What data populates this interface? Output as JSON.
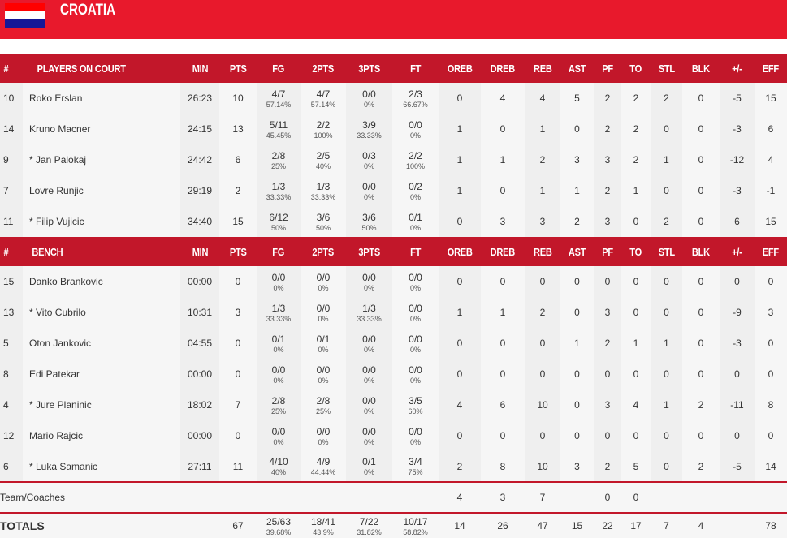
{
  "team": {
    "name": "CROATIA",
    "flag_colors": [
      "#ff0000",
      "#ffffff",
      "#171796"
    ]
  },
  "columns": [
    "#",
    "MIN",
    "PTS",
    "FG",
    "2PTS",
    "3PTS",
    "FT",
    "OREB",
    "DREB",
    "REB",
    "AST",
    "PF",
    "TO",
    "STL",
    "BLK",
    "+/-",
    "EFF"
  ],
  "sections": [
    {
      "title": "PLAYERS ON COURT",
      "players": [
        {
          "no": "10",
          "name": "Roko Erslan",
          "min": "26:23",
          "pts": "10",
          "fg": [
            "4/7",
            "57.14%"
          ],
          "p2": [
            "4/7",
            "57.14%"
          ],
          "p3": [
            "0/0",
            "0%"
          ],
          "ft": [
            "2/3",
            "66.67%"
          ],
          "oreb": "0",
          "dreb": "4",
          "reb": "4",
          "ast": "5",
          "pf": "2",
          "to": "2",
          "stl": "2",
          "blk": "0",
          "pm": "-5",
          "eff": "15"
        },
        {
          "no": "14",
          "name": "Kruno Macner",
          "min": "24:15",
          "pts": "13",
          "fg": [
            "5/11",
            "45.45%"
          ],
          "p2": [
            "2/2",
            "100%"
          ],
          "p3": [
            "3/9",
            "33.33%"
          ],
          "ft": [
            "0/0",
            "0%"
          ],
          "oreb": "1",
          "dreb": "0",
          "reb": "1",
          "ast": "0",
          "pf": "2",
          "to": "2",
          "stl": "0",
          "blk": "0",
          "pm": "-3",
          "eff": "6"
        },
        {
          "no": "9",
          "name": "* Jan Palokaj",
          "min": "24:42",
          "pts": "6",
          "fg": [
            "2/8",
            "25%"
          ],
          "p2": [
            "2/5",
            "40%"
          ],
          "p3": [
            "0/3",
            "0%"
          ],
          "ft": [
            "2/2",
            "100%"
          ],
          "oreb": "1",
          "dreb": "1",
          "reb": "2",
          "ast": "3",
          "pf": "3",
          "to": "2",
          "stl": "1",
          "blk": "0",
          "pm": "-12",
          "eff": "4"
        },
        {
          "no": "7",
          "name": "Lovre Runjic",
          "min": "29:19",
          "pts": "2",
          "fg": [
            "1/3",
            "33.33%"
          ],
          "p2": [
            "1/3",
            "33.33%"
          ],
          "p3": [
            "0/0",
            "0%"
          ],
          "ft": [
            "0/2",
            "0%"
          ],
          "oreb": "1",
          "dreb": "0",
          "reb": "1",
          "ast": "1",
          "pf": "2",
          "to": "1",
          "stl": "0",
          "blk": "0",
          "pm": "-3",
          "eff": "-1"
        },
        {
          "no": "11",
          "name": "* Filip Vujicic",
          "min": "34:40",
          "pts": "15",
          "fg": [
            "6/12",
            "50%"
          ],
          "p2": [
            "3/6",
            "50%"
          ],
          "p3": [
            "3/6",
            "50%"
          ],
          "ft": [
            "0/1",
            "0%"
          ],
          "oreb": "0",
          "dreb": "3",
          "reb": "3",
          "ast": "2",
          "pf": "3",
          "to": "0",
          "stl": "2",
          "blk": "0",
          "pm": "6",
          "eff": "15"
        }
      ]
    },
    {
      "title": "BENCH",
      "players": [
        {
          "no": "15",
          "name": "Danko Brankovic",
          "min": "00:00",
          "pts": "0",
          "fg": [
            "0/0",
            "0%"
          ],
          "p2": [
            "0/0",
            "0%"
          ],
          "p3": [
            "0/0",
            "0%"
          ],
          "ft": [
            "0/0",
            "0%"
          ],
          "oreb": "0",
          "dreb": "0",
          "reb": "0",
          "ast": "0",
          "pf": "0",
          "to": "0",
          "stl": "0",
          "blk": "0",
          "pm": "0",
          "eff": "0"
        },
        {
          "no": "13",
          "name": "* Vito Cubrilo",
          "min": "10:31",
          "pts": "3",
          "fg": [
            "1/3",
            "33.33%"
          ],
          "p2": [
            "0/0",
            "0%"
          ],
          "p3": [
            "1/3",
            "33.33%"
          ],
          "ft": [
            "0/0",
            "0%"
          ],
          "oreb": "1",
          "dreb": "1",
          "reb": "2",
          "ast": "0",
          "pf": "3",
          "to": "0",
          "stl": "0",
          "blk": "0",
          "pm": "-9",
          "eff": "3"
        },
        {
          "no": "5",
          "name": "Oton Jankovic",
          "min": "04:55",
          "pts": "0",
          "fg": [
            "0/1",
            "0%"
          ],
          "p2": [
            "0/1",
            "0%"
          ],
          "p3": [
            "0/0",
            "0%"
          ],
          "ft": [
            "0/0",
            "0%"
          ],
          "oreb": "0",
          "dreb": "0",
          "reb": "0",
          "ast": "1",
          "pf": "2",
          "to": "1",
          "stl": "1",
          "blk": "0",
          "pm": "-3",
          "eff": "0"
        },
        {
          "no": "8",
          "name": "Edi Patekar",
          "min": "00:00",
          "pts": "0",
          "fg": [
            "0/0",
            "0%"
          ],
          "p2": [
            "0/0",
            "0%"
          ],
          "p3": [
            "0/0",
            "0%"
          ],
          "ft": [
            "0/0",
            "0%"
          ],
          "oreb": "0",
          "dreb": "0",
          "reb": "0",
          "ast": "0",
          "pf": "0",
          "to": "0",
          "stl": "0",
          "blk": "0",
          "pm": "0",
          "eff": "0"
        },
        {
          "no": "4",
          "name": "* Jure Planinic",
          "min": "18:02",
          "pts": "7",
          "fg": [
            "2/8",
            "25%"
          ],
          "p2": [
            "2/8",
            "25%"
          ],
          "p3": [
            "0/0",
            "0%"
          ],
          "ft": [
            "3/5",
            "60%"
          ],
          "oreb": "4",
          "dreb": "6",
          "reb": "10",
          "ast": "0",
          "pf": "3",
          "to": "4",
          "stl": "1",
          "blk": "2",
          "pm": "-11",
          "eff": "8"
        },
        {
          "no": "12",
          "name": "Mario Rajcic",
          "min": "00:00",
          "pts": "0",
          "fg": [
            "0/0",
            "0%"
          ],
          "p2": [
            "0/0",
            "0%"
          ],
          "p3": [
            "0/0",
            "0%"
          ],
          "ft": [
            "0/0",
            "0%"
          ],
          "oreb": "0",
          "dreb": "0",
          "reb": "0",
          "ast": "0",
          "pf": "0",
          "to": "0",
          "stl": "0",
          "blk": "0",
          "pm": "0",
          "eff": "0"
        },
        {
          "no": "6",
          "name": "* Luka Samanic",
          "min": "27:11",
          "pts": "11",
          "fg": [
            "4/10",
            "40%"
          ],
          "p2": [
            "4/9",
            "44.44%"
          ],
          "p3": [
            "0/1",
            "0%"
          ],
          "ft": [
            "3/4",
            "75%"
          ],
          "oreb": "2",
          "dreb": "8",
          "reb": "10",
          "ast": "3",
          "pf": "2",
          "to": "5",
          "stl": "0",
          "blk": "2",
          "pm": "-5",
          "eff": "14"
        }
      ]
    }
  ],
  "team_coaches": {
    "label": "Team/Coaches",
    "oreb": "4",
    "dreb": "3",
    "reb": "7",
    "pf": "0",
    "to": "0"
  },
  "totals": {
    "label": "TOTALS",
    "pts": "67",
    "fg": [
      "25/63",
      "39.68%"
    ],
    "p2": [
      "18/41",
      "43.9%"
    ],
    "p3": [
      "7/22",
      "31.82%"
    ],
    "ft": [
      "10/17",
      "58.82%"
    ],
    "oreb": "14",
    "dreb": "26",
    "reb": "47",
    "ast": "15",
    "pf": "22",
    "to": "17",
    "stl": "7",
    "blk": "4",
    "eff": "78"
  }
}
